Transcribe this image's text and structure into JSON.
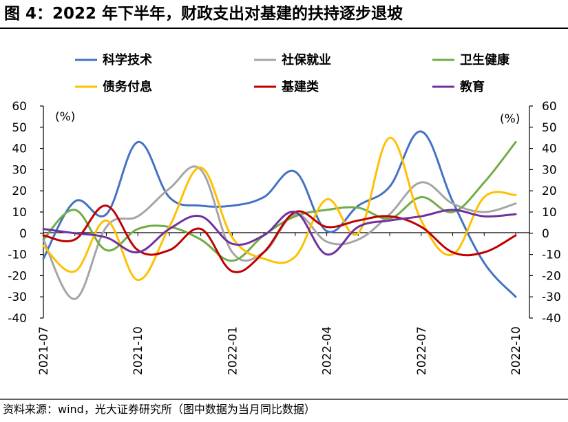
{
  "figure": {
    "title": "图 4：2022 年下半年，财政支出对基建的扶持逐步退坡",
    "source": "资料来源：wind，光大证券研究所（图中数据为当月同比数据）"
  },
  "chart_data": {
    "type": "line",
    "left_unit": "(%)",
    "right_unit": "(%)",
    "ylim": [
      -40,
      60
    ],
    "y_ticks": [
      60,
      50,
      40,
      30,
      20,
      10,
      0,
      -10,
      -20,
      -30,
      -40
    ],
    "categories": [
      "2021-07",
      "2021-08",
      "2021-09",
      "2021-10",
      "2021-11",
      "2021-12",
      "2022-01",
      "2022-02",
      "2022-03",
      "2022-04",
      "2022-05",
      "2022-06",
      "2022-07",
      "2022-08",
      "2022-09",
      "2022-10"
    ],
    "x_tick_labels": [
      {
        "index": 0,
        "label": "2021-07"
      },
      {
        "index": 3,
        "label": "2021-10"
      },
      {
        "index": 6,
        "label": "2022-01"
      },
      {
        "index": 9,
        "label": "2022-04"
      },
      {
        "index": 12,
        "label": "2022-07"
      },
      {
        "index": 15,
        "label": "2022-10"
      }
    ],
    "grid": false,
    "legend_position": "top",
    "series": [
      {
        "name": "科学技术",
        "color": "#4472C4",
        "values": [
          -12,
          15,
          9,
          43,
          17,
          13,
          13,
          17,
          29,
          1,
          13,
          22,
          48,
          15,
          -14,
          -30
        ]
      },
      {
        "name": "社保就业",
        "color": "#A5A5A5",
        "values": [
          -3,
          -31,
          3,
          8,
          21,
          30,
          -9,
          -9,
          9,
          -4,
          -3,
          9,
          24,
          14,
          10,
          14
        ]
      },
      {
        "name": "卫生健康",
        "color": "#70AD47",
        "values": [
          -3,
          11,
          -8,
          2,
          3,
          -3,
          -13,
          -1,
          8,
          11,
          12,
          7,
          17,
          10,
          24,
          43
        ]
      },
      {
        "name": "债务付息",
        "color": "#FFC000",
        "values": [
          -6,
          -18,
          6,
          -22,
          3,
          31,
          -2,
          -12,
          -11,
          16,
          0,
          45,
          6,
          -10,
          17,
          18
        ]
      },
      {
        "name": "基建类",
        "color": "#C00000",
        "values": [
          -1,
          -3,
          13,
          -8,
          -8,
          2,
          -18,
          -9,
          10,
          3,
          6,
          8,
          3,
          -9,
          -9,
          -1
        ]
      },
      {
        "name": "教育",
        "color": "#7030A0",
        "values": [
          2,
          0,
          -2,
          -9,
          2,
          8,
          -5,
          -1,
          10,
          -10,
          3,
          6,
          8,
          11,
          8,
          9
        ]
      }
    ]
  }
}
